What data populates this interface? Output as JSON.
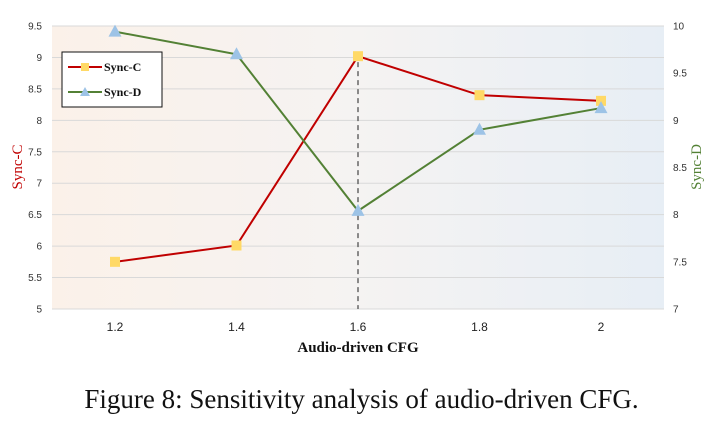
{
  "caption": "Figure 8: Sensitivity analysis of audio-driven CFG.",
  "chart_data": {
    "type": "line",
    "xlabel": "Audio-driven CFG",
    "ylabel": "Sync-C",
    "y2label": "Sync-D",
    "categories": [
      "1.2",
      "1.4",
      "1.6",
      "1.8",
      "2"
    ],
    "ylim": [
      5,
      9.5
    ],
    "y2lim": [
      7,
      10
    ],
    "yticks": [
      "5",
      "5.5",
      "6",
      "6.5",
      "7",
      "7.5",
      "8",
      "8.5",
      "9",
      "9.5"
    ],
    "y2ticks": [
      "7",
      "7.5",
      "8",
      "8.5",
      "9",
      "9.5",
      "10"
    ],
    "series": [
      {
        "name": "Sync-C",
        "axis": "left",
        "values": [
          5.75,
          6.01,
          9.02,
          8.4,
          8.31
        ],
        "color": "#c00000",
        "marker": "square",
        "marker_color": "#ffd966"
      },
      {
        "name": "Sync-D",
        "axis": "right",
        "values": [
          9.94,
          9.7,
          8.04,
          8.9,
          9.13
        ],
        "color": "#538135",
        "marker": "triangle",
        "marker_color": "#9dc3e6"
      }
    ],
    "vline_at": "1.6",
    "legend": "top-left",
    "grid": "horizontal"
  }
}
